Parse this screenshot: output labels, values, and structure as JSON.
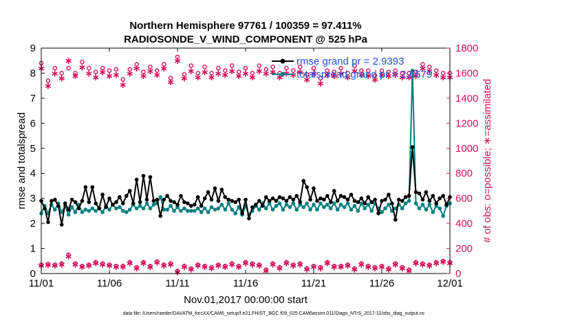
{
  "chart_data": {
    "type": "line",
    "title_line1": "Northern Hemisphere 97761 / 100359 = 97.411%",
    "title_line2": "RADIOSONDE_V_WIND_COMPONENT @ 525 hPa",
    "xlabel": "Nov.01,2017 00:00:00 start",
    "ylabel_left": "rmse and totalspread",
    "ylabel_right": "# of obs: o=possible; ∗=assimilated",
    "xlim": [
      0,
      30
    ],
    "ylim_left": [
      0,
      9
    ],
    "ylim_right": [
      0,
      1800
    ],
    "x_ticks": [
      0,
      5,
      10,
      15,
      20,
      25,
      30
    ],
    "x_tick_labels": [
      "11/01",
      "11/06",
      "11/11",
      "11/16",
      "11/21",
      "11/26",
      "12/01"
    ],
    "y_left_ticks": [
      "0",
      "1",
      "2",
      "3",
      "4",
      "5",
      "6",
      "7",
      "8",
      "9"
    ],
    "y_right_ticks": [
      "0",
      "200",
      "400",
      "600",
      "800",
      "1000",
      "1200",
      "1400",
      "1600",
      "1800"
    ],
    "footer": "data file: /Users/raeder/DAI/ATM_forcXX/CAM6_setup/f.e21.FHIST_BGC.f09_025.CAM6assim.011/Diags_NTrS_2017-11/obs_diag_output.nc",
    "colors": {
      "rmse": "#000000",
      "spread": "#008080",
      "obs": "#d6105c",
      "legend_text": "#1f4fe0"
    },
    "series": [
      {
        "name": "rmse grand pr = 2.9393",
        "axis": "left",
        "x": [
          0,
          0.25,
          0.5,
          0.75,
          1,
          1.25,
          1.5,
          1.75,
          2,
          2.25,
          2.5,
          2.75,
          3,
          3.25,
          3.5,
          3.75,
          4,
          4.25,
          4.5,
          4.75,
          5,
          5.25,
          5.5,
          5.75,
          6,
          6.25,
          6.5,
          6.75,
          7,
          7.25,
          7.5,
          7.75,
          8,
          8.25,
          8.5,
          8.75,
          9,
          9.25,
          9.5,
          9.75,
          10,
          10.25,
          10.5,
          10.75,
          11,
          11.25,
          11.5,
          11.75,
          12,
          12.25,
          12.5,
          12.75,
          13,
          13.25,
          13.5,
          13.75,
          14,
          14.25,
          14.5,
          14.75,
          15,
          15.25,
          15.5,
          15.75,
          16,
          16.25,
          16.5,
          16.75,
          17,
          17.25,
          17.5,
          17.75,
          18,
          18.25,
          18.5,
          18.75,
          19,
          19.25,
          19.5,
          19.75,
          20,
          20.25,
          20.5,
          20.75,
          21,
          21.25,
          21.5,
          21.75,
          22,
          22.25,
          22.5,
          22.75,
          23,
          23.25,
          23.5,
          23.75,
          24,
          24.25,
          24.5,
          24.75,
          25,
          25.25,
          25.5,
          25.75,
          26,
          26.25,
          26.5,
          26.75,
          27,
          27.25,
          27.5,
          27.75,
          28,
          28.25,
          28.5,
          28.75,
          29,
          29.25,
          29.5,
          29.75,
          30
        ],
        "values": [
          2.9,
          2.6,
          2.05,
          2.9,
          2.95,
          2.7,
          1.95,
          2.8,
          2.55,
          2.95,
          2.85,
          2.6,
          2.9,
          3.45,
          2.85,
          3.45,
          2.8,
          2.6,
          3.15,
          2.65,
          3.0,
          2.75,
          2.85,
          3.05,
          2.8,
          3.1,
          3.3,
          2.8,
          3.75,
          2.85,
          3.9,
          2.95,
          3.85,
          2.9,
          2.95,
          2.3,
          2.95,
          3.1,
          2.9,
          2.85,
          2.75,
          3.1,
          2.85,
          2.8,
          2.7,
          2.75,
          3.05,
          2.7,
          3.0,
          3.25,
          2.95,
          3.4,
          2.9,
          3.35,
          3.05,
          2.95,
          2.9,
          2.85,
          2.95,
          2.4,
          2.95,
          2.2,
          2.65,
          2.75,
          2.9,
          2.7,
          3.05,
          2.9,
          3.0,
          2.9,
          3.05,
          3.0,
          2.9,
          3.05,
          2.95,
          3.1,
          2.85,
          3.7,
          3.45,
          2.95,
          3.4,
          2.9,
          3.0,
          2.95,
          3.1,
          2.85,
          3.3,
          2.9,
          3.1,
          3.05,
          2.95,
          3.15,
          2.9,
          2.85,
          3.0,
          2.8,
          3.05,
          2.85,
          2.95,
          2.4,
          2.9,
          2.95,
          3.15,
          2.8,
          2.15,
          2.95,
          2.9,
          3.05,
          3.1,
          5.05,
          3.25,
          3.2,
          2.95,
          3.25,
          2.9,
          3.1,
          2.8,
          3.0,
          3.1,
          2.75,
          3.05
        ]
      },
      {
        "name": "totalspread grand pr = 2.6579",
        "axis": "left",
        "x": [
          0,
          0.25,
          0.5,
          0.75,
          1,
          1.25,
          1.5,
          1.75,
          2,
          2.25,
          2.5,
          2.75,
          3,
          3.25,
          3.5,
          3.75,
          4,
          4.25,
          4.5,
          4.75,
          5,
          5.25,
          5.5,
          5.75,
          6,
          6.25,
          6.5,
          6.75,
          7,
          7.25,
          7.5,
          7.75,
          8,
          8.25,
          8.5,
          8.75,
          9,
          9.25,
          9.5,
          9.75,
          10,
          10.25,
          10.5,
          10.75,
          11,
          11.25,
          11.5,
          11.75,
          12,
          12.25,
          12.5,
          12.75,
          13,
          13.25,
          13.5,
          13.75,
          14,
          14.25,
          14.5,
          14.75,
          15,
          15.25,
          15.5,
          15.75,
          16,
          16.25,
          16.5,
          16.75,
          17,
          17.25,
          17.5,
          17.75,
          18,
          18.25,
          18.5,
          18.75,
          19,
          19.25,
          19.5,
          19.75,
          20,
          20.25,
          20.5,
          20.75,
          21,
          21.25,
          21.5,
          21.75,
          22,
          22.25,
          22.5,
          22.75,
          23,
          23.25,
          23.5,
          23.75,
          24,
          24.25,
          24.5,
          24.75,
          25,
          25.25,
          25.5,
          25.75,
          26,
          26.25,
          26.5,
          26.75,
          27,
          27.25,
          27.5,
          27.75,
          28,
          28.25,
          28.5,
          28.75,
          29,
          29.25,
          29.5,
          29.75,
          30
        ],
        "values": [
          2.4,
          2.7,
          2.4,
          2.75,
          2.55,
          2.8,
          2.45,
          2.7,
          2.35,
          2.65,
          2.45,
          2.75,
          2.45,
          2.55,
          2.5,
          2.6,
          2.5,
          2.6,
          2.45,
          2.7,
          2.55,
          2.75,
          2.6,
          2.65,
          2.5,
          2.45,
          2.55,
          2.75,
          2.6,
          2.7,
          2.6,
          2.8,
          2.6,
          2.75,
          2.8,
          3.05,
          2.55,
          2.55,
          2.7,
          2.5,
          2.65,
          2.5,
          2.6,
          2.5,
          2.5,
          2.5,
          2.6,
          2.45,
          2.6,
          2.45,
          2.65,
          2.55,
          2.6,
          2.75,
          2.55,
          2.8,
          2.55,
          2.4,
          2.65,
          2.35,
          2.7,
          2.35,
          2.5,
          2.7,
          2.55,
          2.8,
          2.6,
          2.8,
          2.55,
          2.7,
          2.8,
          2.55,
          2.75,
          2.65,
          2.8,
          2.55,
          2.75,
          2.65,
          2.8,
          2.55,
          2.75,
          2.55,
          2.8,
          2.65,
          2.75,
          2.6,
          2.8,
          2.55,
          2.75,
          2.65,
          2.8,
          2.55,
          2.7,
          2.5,
          2.8,
          2.6,
          2.75,
          2.5,
          2.8,
          2.6,
          2.45,
          2.6,
          2.75,
          2.5,
          2.6,
          2.75,
          2.6,
          2.8,
          2.9,
          8.1,
          2.8,
          2.6,
          2.75,
          2.55,
          2.75,
          2.45,
          2.7,
          2.6,
          2.3,
          2.7,
          2.8
        ]
      },
      {
        "name": "obs possible",
        "axis": "right",
        "x": [
          0,
          0.5,
          1,
          1.5,
          2,
          2.5,
          3,
          3.5,
          4,
          4.5,
          5,
          5.5,
          6,
          6.5,
          7,
          7.5,
          8,
          8.5,
          9,
          9.5,
          10,
          10.5,
          11,
          11.5,
          12,
          12.5,
          13,
          13.5,
          14,
          14.5,
          15,
          15.5,
          16,
          16.5,
          17,
          17.5,
          18,
          18.5,
          19,
          19.5,
          20,
          20.5,
          21,
          21.5,
          22,
          22.5,
          23,
          23.5,
          24,
          24.5,
          25,
          25.5,
          26,
          26.5,
          27,
          27.5,
          28,
          28.5,
          29,
          29.5,
          30
        ],
        "values": [
          1680,
          1540,
          1640,
          1600,
          1640,
          1600,
          1690,
          1640,
          1610,
          1640,
          1620,
          1630,
          1550,
          1630,
          1670,
          1610,
          1650,
          1620,
          1670,
          1560,
          1730,
          1590,
          1660,
          1600,
          1650,
          1600,
          1640,
          1620,
          1660,
          1610,
          1640,
          1600,
          1660,
          1630,
          1650,
          1600,
          1640,
          1620,
          1650,
          1590,
          1640,
          1560,
          1620,
          1610,
          1640,
          1600,
          1660,
          1620,
          1620,
          1580,
          1620,
          1610,
          1620,
          1600,
          1600,
          1610,
          1670,
          1650,
          1620,
          1600,
          1600
        ]
      },
      {
        "name": "obs assimilated",
        "axis": "right",
        "x": [
          0,
          0.5,
          1,
          1.5,
          2,
          2.5,
          3,
          3.5,
          4,
          4.5,
          5,
          5.5,
          6,
          6.5,
          7,
          7.5,
          8,
          8.5,
          9,
          9.5,
          10,
          10.5,
          11,
          11.5,
          12,
          12.5,
          13,
          13.5,
          14,
          14.5,
          15,
          15.5,
          16,
          16.5,
          17,
          17.5,
          18,
          18.5,
          19,
          19.5,
          20,
          20.5,
          21,
          21.5,
          22,
          22.5,
          23,
          23.5,
          24,
          24.5,
          25,
          25.5,
          26,
          26.5,
          27,
          27.5,
          28,
          28.5,
          29,
          29.5,
          30
        ],
        "values": [
          1640,
          1500,
          1600,
          1560,
          1700,
          1580,
          1650,
          1600,
          1570,
          1610,
          1580,
          1590,
          1510,
          1600,
          1640,
          1580,
          1620,
          1590,
          1640,
          1530,
          1700,
          1560,
          1620,
          1570,
          1610,
          1570,
          1600,
          1590,
          1620,
          1580,
          1600,
          1570,
          1620,
          1600,
          1610,
          1570,
          1600,
          1590,
          1610,
          1550,
          1600,
          1520,
          1590,
          1580,
          1600,
          1570,
          1620,
          1590,
          1580,
          1550,
          1590,
          1580,
          1590,
          1570,
          1570,
          1580,
          1640,
          1620,
          1590,
          1570,
          1570
        ]
      },
      {
        "name": "obs possible low",
        "axis": "right",
        "x": [
          0,
          0.5,
          1,
          1.5,
          2,
          2.5,
          3,
          3.5,
          4,
          4.5,
          5,
          5.5,
          6,
          6.5,
          7,
          7.5,
          8,
          8.5,
          9,
          9.5,
          10,
          10.5,
          11,
          11.5,
          12,
          12.5,
          13,
          13.5,
          14,
          14.5,
          15,
          15.5,
          16,
          16.5,
          17,
          17.5,
          18,
          18.5,
          19,
          19.5,
          20,
          20.5,
          21,
          21.5,
          22,
          22.5,
          23,
          23.5,
          24,
          24.5,
          25,
          25.5,
          26,
          26.5,
          27,
          27.5,
          28,
          28.5,
          29,
          29.5,
          30
        ],
        "values": [
          70,
          75,
          70,
          80,
          150,
          80,
          60,
          70,
          90,
          80,
          70,
          60,
          60,
          90,
          50,
          90,
          60,
          95,
          70,
          80,
          20,
          60,
          40,
          70,
          60,
          50,
          70,
          60,
          80,
          60,
          90,
          80,
          70,
          30,
          80,
          50,
          90,
          70,
          80,
          40,
          60,
          50,
          90,
          60,
          60,
          70,
          40,
          80,
          60,
          50,
          60,
          40,
          80,
          50,
          30,
          90,
          80,
          70,
          90,
          100,
          90
        ]
      },
      {
        "name": "obs assimilated low",
        "axis": "right",
        "x": [
          0,
          0.5,
          1,
          1.5,
          2,
          2.5,
          3,
          3.5,
          4,
          4.5,
          5,
          5.5,
          6,
          6.5,
          7,
          7.5,
          8,
          8.5,
          9,
          9.5,
          10,
          10.5,
          11,
          11.5,
          12,
          12.5,
          13,
          13.5,
          14,
          14.5,
          15,
          15.5,
          16,
          16.5,
          17,
          17.5,
          18,
          18.5,
          19,
          19.5,
          20,
          20.5,
          21,
          21.5,
          22,
          22.5,
          23,
          23.5,
          24,
          24.5,
          25,
          25.5,
          26,
          26.5,
          27,
          27.5,
          28,
          28.5,
          29,
          29.5,
          30
        ],
        "values": [
          65,
          70,
          65,
          75,
          140,
          75,
          55,
          65,
          85,
          75,
          65,
          55,
          55,
          85,
          45,
          85,
          55,
          90,
          65,
          75,
          15,
          55,
          35,
          65,
          55,
          45,
          65,
          55,
          75,
          55,
          85,
          75,
          65,
          25,
          75,
          45,
          85,
          65,
          75,
          35,
          55,
          45,
          85,
          55,
          55,
          65,
          35,
          75,
          55,
          45,
          55,
          35,
          75,
          45,
          25,
          85,
          75,
          65,
          85,
          95,
          85
        ]
      }
    ]
  }
}
